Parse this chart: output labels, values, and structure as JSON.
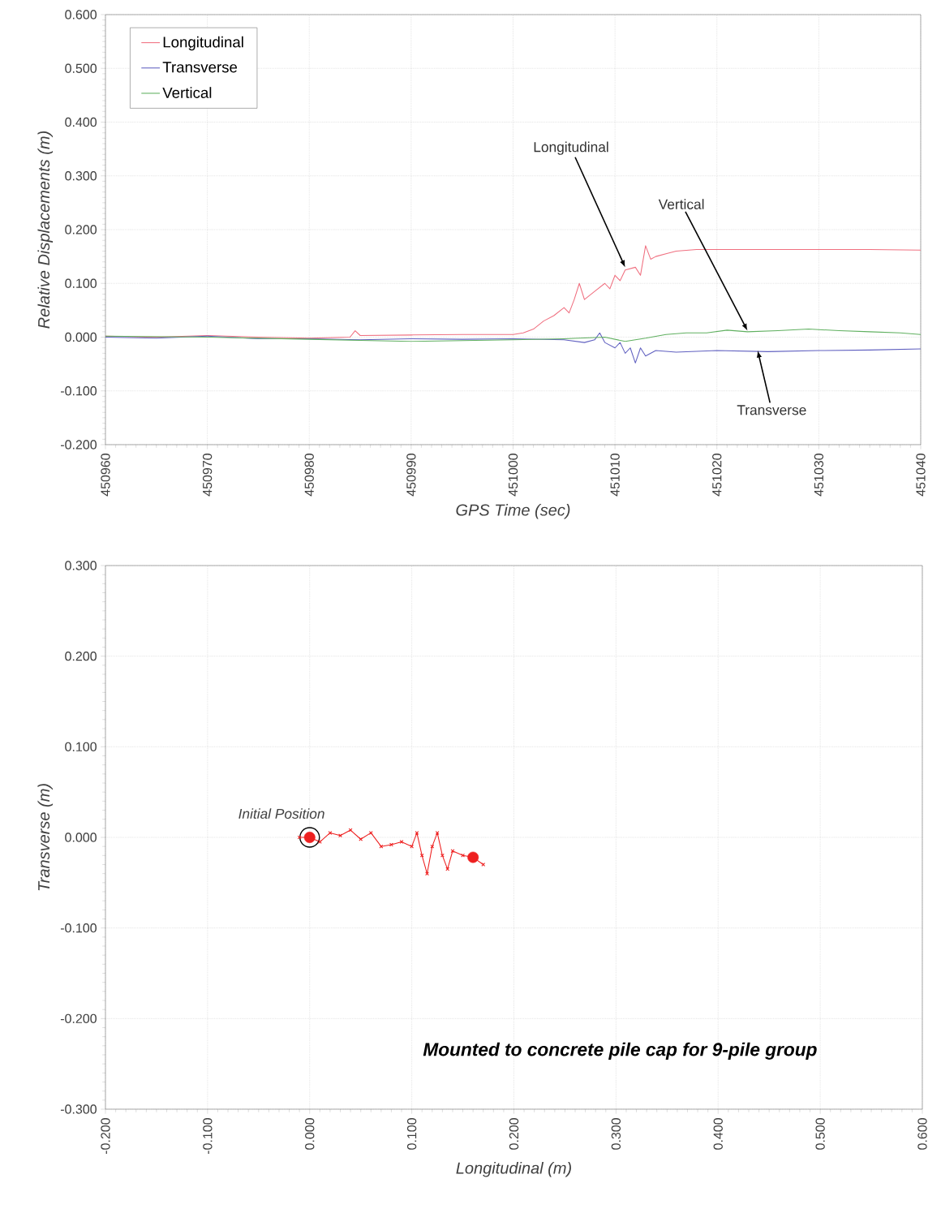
{
  "chart_data": [
    {
      "type": "line",
      "xlabel": "GPS Time (sec)",
      "ylabel": "Relative Displacements (m)",
      "xlim": [
        450960,
        451040
      ],
      "ylim": [
        -0.2,
        0.6
      ],
      "xticks": [
        450960,
        450970,
        450980,
        450990,
        451000,
        451010,
        451020,
        451030,
        451040
      ],
      "yticks": [
        {
          "value": -0.2,
          "label": "-0.200"
        },
        {
          "value": -0.1,
          "label": "-0.100"
        },
        {
          "value": 0,
          "label": "0.000"
        },
        {
          "value": 0.1,
          "label": "0.100"
        },
        {
          "value": 0.2,
          "label": "0.200"
        },
        {
          "value": 0.3,
          "label": "0.300"
        },
        {
          "value": 0.4,
          "label": "0.400"
        },
        {
          "value": 0.5,
          "label": "0.500"
        },
        {
          "value": 0.6,
          "label": "0.600"
        }
      ],
      "grid": true,
      "legend": "top left",
      "marker": "none",
      "line_style": "solid",
      "series": [
        {
          "name": "Longitudinal",
          "color": "#f07080",
          "x": [
            450960,
            450965,
            450970,
            450975,
            450980,
            450984,
            450984.5,
            450985,
            450990,
            450995,
            451000,
            451001,
            451002,
            451003,
            451004,
            451005,
            451005.5,
            451006,
            451006.5,
            451007,
            451008,
            451009,
            451009.5,
            451010,
            451010.5,
            451011,
            451012,
            451012.5,
            451013,
            451013.5,
            451014,
            451015,
            451016,
            451018,
            451025,
            451030,
            451035,
            451040
          ],
          "values": [
            0.002,
            0.0,
            0.003,
            0.0,
            -0.002,
            0.0,
            0.012,
            0.003,
            0.004,
            0.005,
            0.005,
            0.008,
            0.015,
            0.03,
            0.04,
            0.055,
            0.045,
            0.07,
            0.1,
            0.07,
            0.085,
            0.1,
            0.09,
            0.115,
            0.105,
            0.125,
            0.13,
            0.115,
            0.17,
            0.145,
            0.15,
            0.155,
            0.16,
            0.163,
            0.163,
            0.163,
            0.163,
            0.162
          ]
        },
        {
          "name": "Transverse",
          "color": "#6060c0",
          "x": [
            450960,
            450965,
            450970,
            450975,
            450980,
            450985,
            450990,
            450995,
            451000,
            451005,
            451007,
            451008,
            451008.5,
            451009,
            451010,
            451010.5,
            451011,
            451011.5,
            451012,
            451012.5,
            451013,
            451014,
            451016,
            451020,
            451025,
            451030,
            451035,
            451040
          ],
          "values": [
            0.0,
            -0.002,
            0.002,
            -0.003,
            -0.003,
            -0.005,
            -0.003,
            -0.004,
            -0.003,
            -0.005,
            -0.01,
            -0.005,
            0.008,
            -0.01,
            -0.02,
            -0.01,
            -0.03,
            -0.02,
            -0.048,
            -0.02,
            -0.035,
            -0.025,
            -0.028,
            -0.025,
            -0.027,
            -0.025,
            -0.024,
            -0.022
          ]
        },
        {
          "name": "Vertical",
          "color": "#60b060",
          "x": [
            450960,
            450970,
            450980,
            450985,
            450990,
            451000,
            451005,
            451009,
            451011,
            451013,
            451015,
            451017,
            451019,
            451021,
            451023,
            451026,
            451029,
            451032,
            451035,
            451038,
            451040
          ],
          "values": [
            0.002,
            0.0,
            -0.004,
            -0.006,
            -0.008,
            -0.005,
            -0.003,
            0.0,
            -0.008,
            -0.002,
            0.005,
            0.008,
            0.008,
            0.013,
            0.01,
            0.012,
            0.015,
            0.012,
            0.01,
            0.008,
            0.005
          ]
        }
      ],
      "annotations": [
        {
          "text": "Longitudinal",
          "x": 451011,
          "y": 0.13
        },
        {
          "text": "Vertical",
          "x": 451023,
          "y": 0.012
        },
        {
          "text": "Transverse",
          "x": 451024,
          "y": -0.025
        }
      ]
    },
    {
      "type": "line",
      "xlabel": "Longitudinal (m)",
      "ylabel": "Transverse (m)",
      "xlim": [
        -0.2,
        0.6
      ],
      "ylim": [
        -0.3,
        0.3
      ],
      "xticks": [
        {
          "value": -0.2,
          "label": "-0.200"
        },
        {
          "value": -0.1,
          "label": "-0.100"
        },
        {
          "value": 0,
          "label": "0.000"
        },
        {
          "value": 0.1,
          "label": "0.100"
        },
        {
          "value": 0.2,
          "label": "0.200"
        },
        {
          "value": 0.3,
          "label": "0.300"
        },
        {
          "value": 0.4,
          "label": "0.400"
        },
        {
          "value": 0.5,
          "label": "0.500"
        },
        {
          "value": 0.6,
          "label": "0.600"
        }
      ],
      "yticks": [
        {
          "value": -0.3,
          "label": "-0.300"
        },
        {
          "value": -0.2,
          "label": "-0.200"
        },
        {
          "value": -0.1,
          "label": "-0.100"
        },
        {
          "value": 0,
          "label": "0.000"
        },
        {
          "value": 0.1,
          "label": "0.100"
        },
        {
          "value": 0.2,
          "label": "0.200"
        },
        {
          "value": 0.3,
          "label": "0.300"
        }
      ],
      "grid": true,
      "marker": "cross",
      "line_style": "solid",
      "series": [
        {
          "color": "#ee2020",
          "x": [
            -0.01,
            0.0,
            0.01,
            0.02,
            0.03,
            0.04,
            0.05,
            0.06,
            0.07,
            0.08,
            0.09,
            0.1,
            0.105,
            0.11,
            0.115,
            0.12,
            0.125,
            0.13,
            0.135,
            0.14,
            0.15,
            0.16,
            0.17
          ],
          "values": [
            0.0,
            0.0,
            -0.005,
            0.005,
            0.002,
            0.008,
            -0.002,
            0.005,
            -0.01,
            -0.008,
            -0.005,
            -0.01,
            0.005,
            -0.02,
            -0.04,
            -0.01,
            0.005,
            -0.02,
            -0.035,
            -0.015,
            -0.02,
            -0.022,
            -0.03
          ]
        },
        {
          "type": "scatter",
          "marker": "circle",
          "color": "#ee2020",
          "x": [
            0.0
          ],
          "values": [
            0.0
          ]
        },
        {
          "type": "scatter",
          "marker": "circle",
          "color": "#ee2020",
          "x": [
            0.16
          ],
          "values": [
            -0.022
          ]
        }
      ],
      "annotations": [
        {
          "text": "Initial Position",
          "x": 0.0,
          "y": 0.0
        },
        "Mounted to concrete pile cap for 9-pile group"
      ]
    }
  ]
}
